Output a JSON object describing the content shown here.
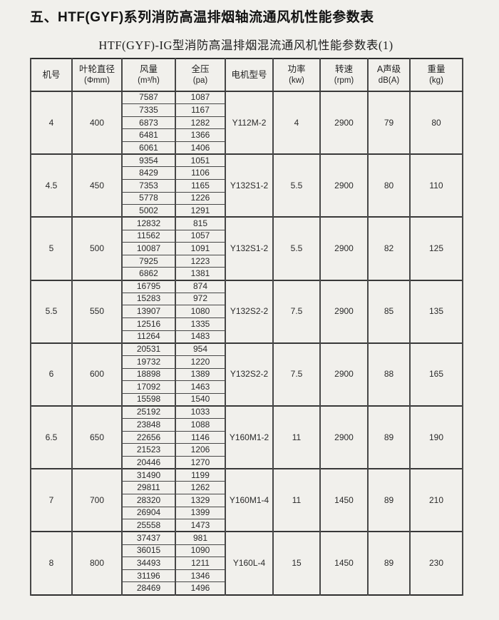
{
  "page": {
    "title": "五、HTF(GYF)系列消防高温排烟轴流通风机性能参数表",
    "subtitle": "HTF(GYF)-IG型消防高温排烟混流通风机性能参数表(1)"
  },
  "table": {
    "headers": [
      {
        "label": "机号",
        "unit": ""
      },
      {
        "label": "叶轮直径",
        "unit": "(Φmm)"
      },
      {
        "label": "风量",
        "unit": "(m³/h)"
      },
      {
        "label": "全压",
        "unit": "(pa)"
      },
      {
        "label": "电机型号",
        "unit": ""
      },
      {
        "label": "功率",
        "unit": "(kw)"
      },
      {
        "label": "转速",
        "unit": "(rpm)"
      },
      {
        "label": "A声级",
        "unit": "dB(A)"
      },
      {
        "label": "重量",
        "unit": "(kg)"
      }
    ],
    "groups": [
      {
        "machine_no": "4",
        "impeller_diameter": "400",
        "motor_model": "Y112M-2",
        "power": "4",
        "speed": "2900",
        "noise": "79",
        "weight": "80",
        "rows": [
          {
            "air_volume": "7587",
            "total_pressure": "1087"
          },
          {
            "air_volume": "7335",
            "total_pressure": "1167"
          },
          {
            "air_volume": "6873",
            "total_pressure": "1282"
          },
          {
            "air_volume": "6481",
            "total_pressure": "1366"
          },
          {
            "air_volume": "6061",
            "total_pressure": "1406"
          }
        ]
      },
      {
        "machine_no": "4.5",
        "impeller_diameter": "450",
        "motor_model": "Y132S1-2",
        "power": "5.5",
        "speed": "2900",
        "noise": "80",
        "weight": "110",
        "rows": [
          {
            "air_volume": "9354",
            "total_pressure": "1051"
          },
          {
            "air_volume": "8429",
            "total_pressure": "1106"
          },
          {
            "air_volume": "7353",
            "total_pressure": "1165"
          },
          {
            "air_volume": "5778",
            "total_pressure": "1226"
          },
          {
            "air_volume": "5002",
            "total_pressure": "1291"
          }
        ]
      },
      {
        "machine_no": "5",
        "impeller_diameter": "500",
        "motor_model": "Y132S1-2",
        "power": "5.5",
        "speed": "2900",
        "noise": "82",
        "weight": "125",
        "rows": [
          {
            "air_volume": "12832",
            "total_pressure": "815"
          },
          {
            "air_volume": "11562",
            "total_pressure": "1057"
          },
          {
            "air_volume": "10087",
            "total_pressure": "1091"
          },
          {
            "air_volume": "7925",
            "total_pressure": "1223"
          },
          {
            "air_volume": "6862",
            "total_pressure": "1381"
          }
        ]
      },
      {
        "machine_no": "5.5",
        "impeller_diameter": "550",
        "motor_model": "Y132S2-2",
        "power": "7.5",
        "speed": "2900",
        "noise": "85",
        "weight": "135",
        "rows": [
          {
            "air_volume": "16795",
            "total_pressure": "874"
          },
          {
            "air_volume": "15283",
            "total_pressure": "972"
          },
          {
            "air_volume": "13907",
            "total_pressure": "1080"
          },
          {
            "air_volume": "12516",
            "total_pressure": "1335"
          },
          {
            "air_volume": "11264",
            "total_pressure": "1483"
          }
        ]
      },
      {
        "machine_no": "6",
        "impeller_diameter": "600",
        "motor_model": "Y132S2-2",
        "power": "7.5",
        "speed": "2900",
        "noise": "88",
        "weight": "165",
        "rows": [
          {
            "air_volume": "20531",
            "total_pressure": "954"
          },
          {
            "air_volume": "19732",
            "total_pressure": "1220"
          },
          {
            "air_volume": "18898",
            "total_pressure": "1389"
          },
          {
            "air_volume": "17092",
            "total_pressure": "1463"
          },
          {
            "air_volume": "15598",
            "total_pressure": "1540"
          }
        ]
      },
      {
        "machine_no": "6.5",
        "impeller_diameter": "650",
        "motor_model": "Y160M1-2",
        "power": "11",
        "speed": "2900",
        "noise": "89",
        "weight": "190",
        "rows": [
          {
            "air_volume": "25192",
            "total_pressure": "1033"
          },
          {
            "air_volume": "23848",
            "total_pressure": "1088"
          },
          {
            "air_volume": "22656",
            "total_pressure": "1146"
          },
          {
            "air_volume": "21523",
            "total_pressure": "1206"
          },
          {
            "air_volume": "20446",
            "total_pressure": "1270"
          }
        ]
      },
      {
        "machine_no": "7",
        "impeller_diameter": "700",
        "motor_model": "Y160M1-4",
        "power": "11",
        "speed": "1450",
        "noise": "89",
        "weight": "210",
        "rows": [
          {
            "air_volume": "31490",
            "total_pressure": "1199"
          },
          {
            "air_volume": "29811",
            "total_pressure": "1262"
          },
          {
            "air_volume": "28320",
            "total_pressure": "1329"
          },
          {
            "air_volume": "26904",
            "total_pressure": "1399"
          },
          {
            "air_volume": "25558",
            "total_pressure": "1473"
          }
        ]
      },
      {
        "machine_no": "8",
        "impeller_diameter": "800",
        "motor_model": "Y160L-4",
        "power": "15",
        "speed": "1450",
        "noise": "89",
        "weight": "230",
        "rows": [
          {
            "air_volume": "37437",
            "total_pressure": "981"
          },
          {
            "air_volume": "36015",
            "total_pressure": "1090"
          },
          {
            "air_volume": "34493",
            "total_pressure": "1211"
          },
          {
            "air_volume": "31196",
            "total_pressure": "1346"
          },
          {
            "air_volume": "28469",
            "total_pressure": "1496"
          }
        ]
      }
    ]
  }
}
